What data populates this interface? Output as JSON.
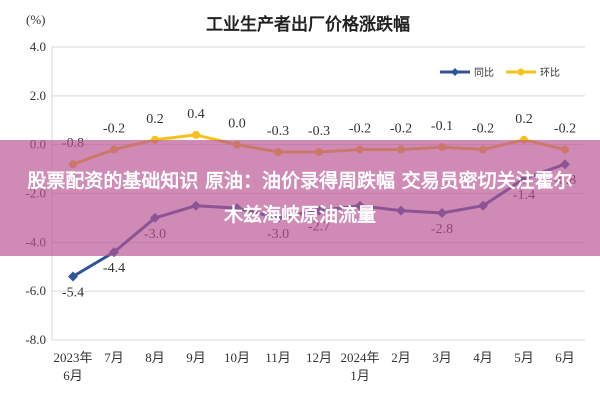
{
  "banner": {
    "text": "股票配资的基础知识 原油：油价录得周跌幅 交易员密切关注霍尔木兹海峡原油流量"
  },
  "colors": {
    "series_yoy": "#2f5597",
    "series_mom": "#f5c21b",
    "grid": "#d9d9d9",
    "banner_bg": "#b85494"
  },
  "chart_data": {
    "type": "line",
    "title": "工业生产者出厂价格涨跌幅",
    "ylabel": "(%)",
    "ylim": [
      -8.0,
      4.0
    ],
    "yticks": [
      "4.0",
      "2.0",
      "0.0",
      "-2.0",
      "-4.0",
      "-6.0",
      "-8.0"
    ],
    "ytick_values": [
      4,
      2,
      0,
      -2,
      -4,
      -6,
      -8
    ],
    "categories": [
      [
        "2023年",
        "6月"
      ],
      [
        "7月"
      ],
      [
        "8月"
      ],
      [
        "9月"
      ],
      [
        "10月"
      ],
      [
        "11月"
      ],
      [
        "12月"
      ],
      [
        "2024年",
        "1月"
      ],
      [
        "2月"
      ],
      [
        "3月"
      ],
      [
        "4月"
      ],
      [
        "5月"
      ],
      [
        "6月"
      ]
    ],
    "legend_position": "top-right",
    "grid": true,
    "series": [
      {
        "name": "同比",
        "color": "#2f5597",
        "values": [
          -5.4,
          -4.4,
          -3.0,
          -2.5,
          -2.6,
          -3.0,
          -2.7,
          -2.5,
          -2.7,
          -2.8,
          -2.5,
          -1.4,
          -0.8
        ],
        "labels": [
          "-5.4",
          "-4.4",
          "-3.0",
          "",
          "",
          "-3.0",
          "-2.7",
          "",
          "",
          "-2.8",
          "",
          "-1.4",
          "-0.8"
        ]
      },
      {
        "name": "环比",
        "color": "#f5c21b",
        "values": [
          -0.8,
          -0.2,
          0.2,
          0.4,
          0.0,
          -0.3,
          -0.3,
          -0.2,
          -0.2,
          -0.1,
          -0.2,
          0.2,
          -0.2
        ],
        "labels": [
          "-0.8",
          "-0.2",
          "0.2",
          "0.4",
          "0.0",
          "-0.3",
          "-0.3",
          "-0.2",
          "-0.2",
          "-0.1",
          "-0.2",
          "0.2",
          "-0.2"
        ]
      }
    ]
  }
}
